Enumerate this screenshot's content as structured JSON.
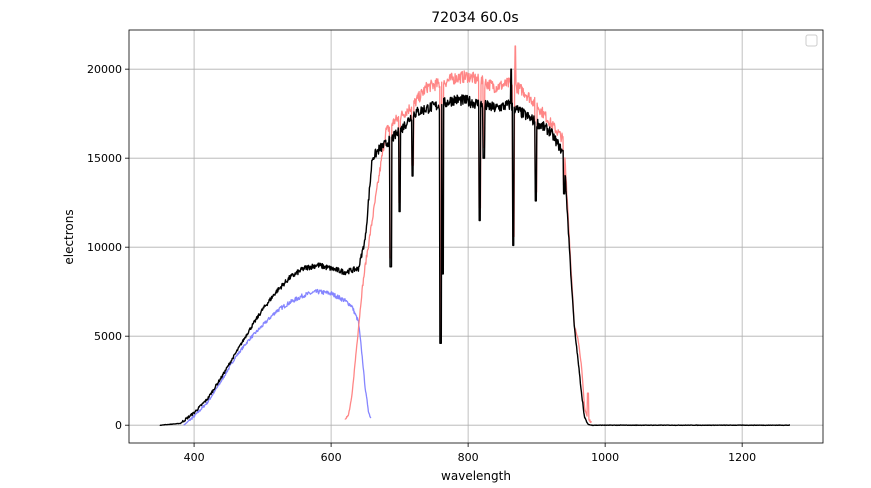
{
  "colors": {
    "blue": "#7f7fff",
    "red": "#ff7f7f",
    "black": "#000000",
    "grid": "#b0b0b0",
    "background": "#ffffff"
  },
  "chart_data": {
    "type": "line",
    "title": "72034 60.0s",
    "xlabel": "wavelength",
    "ylabel": "electrons",
    "xlim": [
      305,
      1318
    ],
    "ylim": [
      -1000,
      22200
    ],
    "xticks": [
      400,
      600,
      800,
      1000,
      1200
    ],
    "yticks": [
      0,
      5000,
      10000,
      15000,
      20000
    ],
    "xtick_labels": [
      "400",
      "600",
      "800",
      "1000",
      "1200"
    ],
    "ytick_labels": [
      "0",
      "5000",
      "10000",
      "15000",
      "20000"
    ],
    "grid": true,
    "legend": "top-right (empty)",
    "series": [
      {
        "color": "#7f7fff",
        "x": [
          385,
          400,
          420,
          440,
          460,
          480,
          500,
          520,
          540,
          560,
          580,
          600,
          620,
          630,
          640,
          645,
          650,
          655,
          658
        ],
        "y": [
          0,
          500,
          1300,
          2500,
          3800,
          4800,
          5600,
          6400,
          6900,
          7300,
          7500,
          7400,
          7000,
          6700,
          5800,
          4000,
          2000,
          700,
          400
        ]
      },
      {
        "color": "#ff7f7f",
        "x": [
          620,
          625,
          630,
          635,
          640,
          645,
          650,
          660,
          670,
          680,
          690,
          700,
          720,
          740,
          760,
          780,
          800,
          820,
          840,
          860,
          870,
          880,
          900,
          920,
          940,
          950,
          955,
          960,
          965,
          970,
          975,
          980
        ],
        "y": [
          400,
          500,
          1500,
          3500,
          5500,
          7500,
          9000,
          11500,
          14000,
          16500,
          17000,
          17300,
          18000,
          19000,
          19200,
          19500,
          19600,
          19300,
          19000,
          19200,
          19000,
          18800,
          18000,
          17000,
          16000,
          9000,
          5500,
          5000,
          3500,
          1000,
          300,
          200
        ]
      },
      {
        "color": "#000000",
        "x": [
          350,
          380,
          400,
          420,
          440,
          460,
          480,
          500,
          520,
          540,
          560,
          580,
          600,
          620,
          640,
          650,
          660,
          670,
          680,
          700,
          720,
          740,
          760,
          780,
          800,
          820,
          840,
          860,
          880,
          900,
          920,
          940,
          950,
          955,
          960,
          965,
          970,
          975,
          980,
          1000,
          1100,
          1200,
          1270
        ],
        "y": [
          0,
          100,
          700,
          1500,
          2700,
          4000,
          5300,
          6500,
          7500,
          8300,
          8800,
          9000,
          8800,
          8600,
          8800,
          10500,
          15000,
          15500,
          15800,
          16500,
          17500,
          17800,
          18000,
          18300,
          18200,
          18000,
          17800,
          18000,
          17500,
          17000,
          16500,
          15200,
          8500,
          5500,
          3800,
          2000,
          400,
          50,
          0,
          0,
          0,
          0,
          0
        ]
      }
    ],
    "absorption_dips": [
      {
        "x": 687,
        "black": 8900,
        "red": 9400
      },
      {
        "x": 700,
        "black": 12000,
        "red": 12500
      },
      {
        "x": 719,
        "black": 14000,
        "red": 14600
      },
      {
        "x": 760,
        "black": 4600,
        "red": 4800
      },
      {
        "x": 763,
        "black": 8500,
        "red": 9000
      },
      {
        "x": 817,
        "black": 11500,
        "red": 12200
      },
      {
        "x": 823,
        "black": 15000,
        "red": 15600
      },
      {
        "x": 866,
        "black": 10100,
        "red": 10600
      },
      {
        "x": 899,
        "black": 12600,
        "red": 13100
      },
      {
        "x": 940,
        "black": 13000,
        "red": 13500
      }
    ],
    "spikes": [
      {
        "x": 863,
        "black": 20000
      },
      {
        "x": 869,
        "red": 21300
      },
      {
        "x": 975,
        "red": 1800
      }
    ]
  }
}
